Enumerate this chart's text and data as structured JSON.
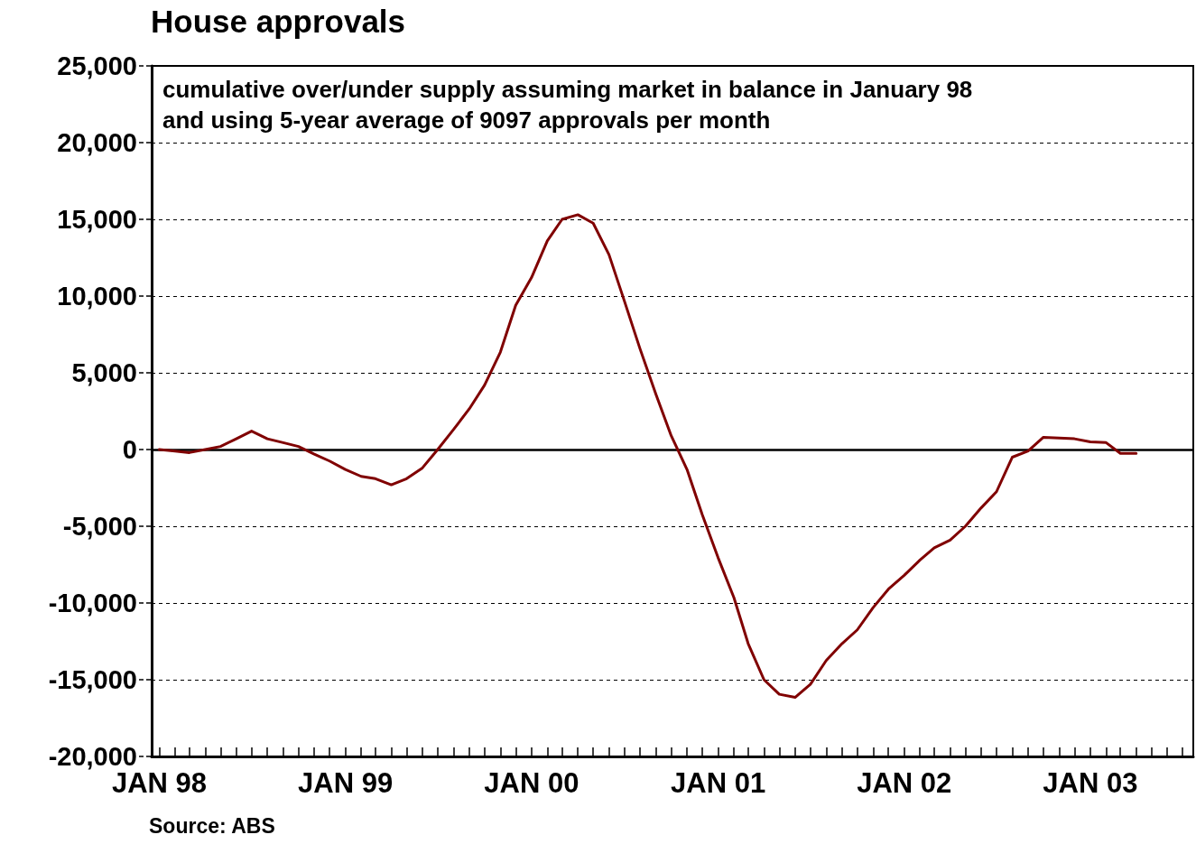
{
  "chart_data": {
    "type": "line",
    "title": "House approvals",
    "subtitle": "cumulative over/under supply assuming market in balance in January 98\nand using 5-year average of 9097 approvals per month",
    "annotations": [
      "Source: ABS"
    ],
    "x": [
      "1998-01",
      "1998-02",
      "1998-03",
      "1998-04",
      "1998-05",
      "1998-06",
      "1998-07",
      "1998-08",
      "1998-09",
      "1998-10",
      "1998-11",
      "1998-12",
      "1999-01",
      "1999-02",
      "1999-03",
      "1999-04",
      "1999-05",
      "1999-06",
      "1999-07",
      "1999-08",
      "1999-09",
      "1999-10",
      "1999-11",
      "1999-12",
      "2000-01",
      "2000-02",
      "2000-03",
      "2000-04",
      "2000-05",
      "2000-06",
      "2000-07",
      "2000-08",
      "2000-09",
      "2000-10",
      "2000-11",
      "2000-12",
      "2001-01",
      "2001-02",
      "2001-03",
      "2001-04",
      "2001-05",
      "2001-06",
      "2001-07",
      "2001-08",
      "2001-09",
      "2001-10",
      "2001-11",
      "2001-12",
      "2002-01",
      "2002-02",
      "2002-03",
      "2002-04",
      "2002-05",
      "2002-06",
      "2002-07",
      "2002-08",
      "2002-09",
      "2002-10",
      "2002-11",
      "2002-12",
      "2003-01",
      "2003-02",
      "2003-03",
      "2003-04"
    ],
    "series": [
      {
        "color": "#800000",
        "values": [
          0,
          -100,
          -200,
          0,
          200,
          700,
          1200,
          700,
          450,
          200,
          -300,
          -750,
          -1300,
          -1750,
          -1900,
          -2300,
          -1900,
          -1200,
          0,
          1300,
          2650,
          4200,
          6350,
          9400,
          11200,
          13600,
          15000,
          15300,
          14750,
          12700,
          9700,
          6550,
          3600,
          900,
          -1300,
          -4250,
          -7050,
          -9650,
          -12650,
          -15000,
          -15950,
          -16150,
          -15300,
          -13750,
          -12650,
          -11750,
          -10300,
          -9100,
          -8200,
          -7200,
          -6400,
          -5900,
          -5000,
          -3800,
          -2750,
          -500,
          -100,
          800,
          750,
          700,
          500,
          450,
          -250,
          -250
        ]
      }
    ],
    "xlim": [
      "1997-12-17",
      "2003-07-22"
    ],
    "xticks": [
      {
        "value": "1998-01",
        "label": "JAN 98"
      },
      {
        "value": "1998-02",
        "label": null
      },
      {
        "value": "1998-03",
        "label": null
      },
      {
        "value": "1998-04",
        "label": null
      },
      {
        "value": "1998-05",
        "label": null
      },
      {
        "value": "1998-06",
        "label": null
      },
      {
        "value": "1998-07",
        "label": null
      },
      {
        "value": "1998-08",
        "label": null
      },
      {
        "value": "1998-09",
        "label": null
      },
      {
        "value": "1998-10",
        "label": null
      },
      {
        "value": "1998-11",
        "label": null
      },
      {
        "value": "1998-12",
        "label": null
      },
      {
        "value": "1999-01",
        "label": "JAN 99"
      },
      {
        "value": "1999-02",
        "label": null
      },
      {
        "value": "1999-03",
        "label": null
      },
      {
        "value": "1999-04",
        "label": null
      },
      {
        "value": "1999-05",
        "label": null
      },
      {
        "value": "1999-06",
        "label": null
      },
      {
        "value": "1999-07",
        "label": null
      },
      {
        "value": "1999-08",
        "label": null
      },
      {
        "value": "1999-09",
        "label": null
      },
      {
        "value": "1999-10",
        "label": null
      },
      {
        "value": "1999-11",
        "label": null
      },
      {
        "value": "1999-12",
        "label": null
      },
      {
        "value": "2000-01",
        "label": "JAN 00"
      },
      {
        "value": "2000-02",
        "label": null
      },
      {
        "value": "2000-03",
        "label": null
      },
      {
        "value": "2000-04",
        "label": null
      },
      {
        "value": "2000-05",
        "label": null
      },
      {
        "value": "2000-06",
        "label": null
      },
      {
        "value": "2000-07",
        "label": null
      },
      {
        "value": "2000-08",
        "label": null
      },
      {
        "value": "2000-09",
        "label": null
      },
      {
        "value": "2000-10",
        "label": null
      },
      {
        "value": "2000-11",
        "label": null
      },
      {
        "value": "2000-12",
        "label": null
      },
      {
        "value": "2001-01",
        "label": "JAN 01"
      },
      {
        "value": "2001-02",
        "label": null
      },
      {
        "value": "2001-03",
        "label": null
      },
      {
        "value": "2001-04",
        "label": null
      },
      {
        "value": "2001-05",
        "label": null
      },
      {
        "value": "2001-06",
        "label": null
      },
      {
        "value": "2001-07",
        "label": null
      },
      {
        "value": "2001-08",
        "label": null
      },
      {
        "value": "2001-09",
        "label": null
      },
      {
        "value": "2001-10",
        "label": null
      },
      {
        "value": "2001-11",
        "label": null
      },
      {
        "value": "2001-12",
        "label": null
      },
      {
        "value": "2002-01",
        "label": "JAN 02"
      },
      {
        "value": "2002-02",
        "label": null
      },
      {
        "value": "2002-03",
        "label": null
      },
      {
        "value": "2002-04",
        "label": null
      },
      {
        "value": "2002-05",
        "label": null
      },
      {
        "value": "2002-06",
        "label": null
      },
      {
        "value": "2002-07",
        "label": null
      },
      {
        "value": "2002-08",
        "label": null
      },
      {
        "value": "2002-09",
        "label": null
      },
      {
        "value": "2002-10",
        "label": null
      },
      {
        "value": "2002-11",
        "label": null
      },
      {
        "value": "2002-12",
        "label": null
      },
      {
        "value": "2003-01",
        "label": "JAN 03"
      },
      {
        "value": "2003-02",
        "label": null
      },
      {
        "value": "2003-03",
        "label": null
      },
      {
        "value": "2003-04",
        "label": null
      },
      {
        "value": "2003-05",
        "label": null
      },
      {
        "value": "2003-06",
        "label": null
      },
      {
        "value": "2003-07",
        "label": null
      }
    ],
    "ylim": [
      -20000,
      25000
    ],
    "yticks": [
      {
        "value": -20000,
        "label": "-20,000"
      },
      {
        "value": -15000,
        "label": "-15,000"
      },
      {
        "value": -10000,
        "label": "-10,000"
      },
      {
        "value": -5000,
        "label": "-5,000"
      },
      0,
      {
        "value": 5000,
        "label": "5,000"
      },
      {
        "value": 10000,
        "label": "10,000"
      },
      {
        "value": 15000,
        "label": "15,000"
      },
      {
        "value": 20000,
        "label": "20,000"
      },
      {
        "value": 25000,
        "label": "25,000"
      }
    ],
    "grid": "y",
    "marker": "none",
    "line_style": "solid",
    "ref_lines": [
      {
        "axis": "y",
        "value": 0,
        "color": "#000000",
        "line_style": "solid"
      }
    ]
  }
}
